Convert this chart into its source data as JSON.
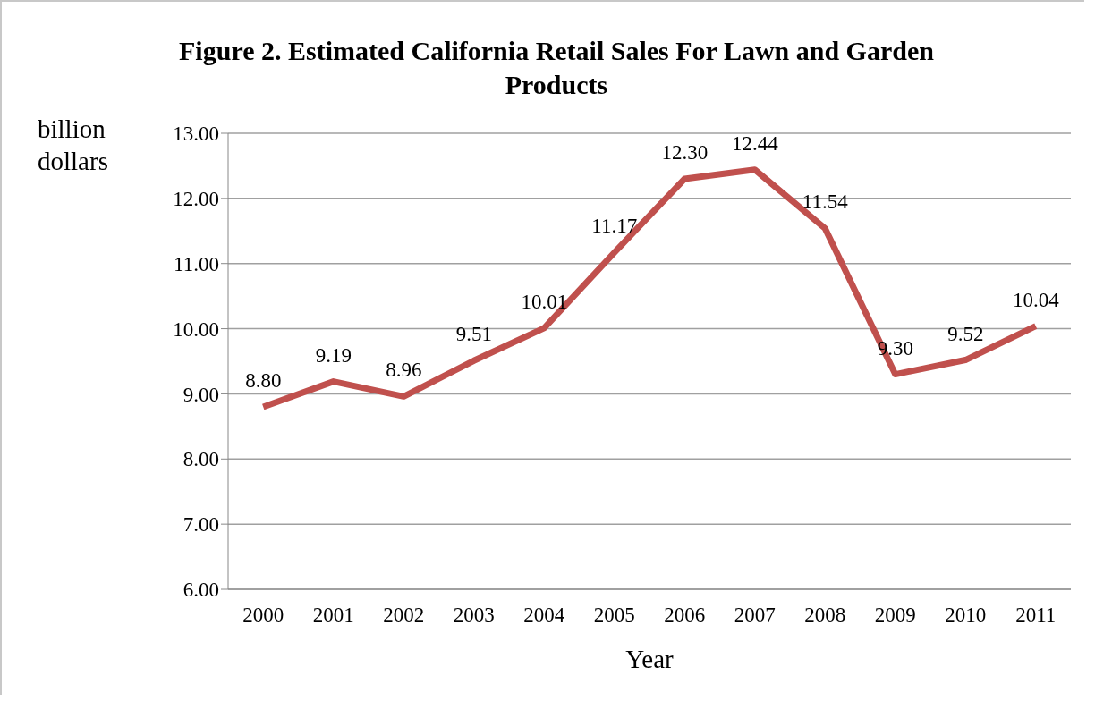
{
  "chart_data": {
    "type": "line",
    "title": "Figure 2. Estimated California Retail Sales For Lawn and Garden Products",
    "xlabel": "Year",
    "ylabel": "billion dollars",
    "categories": [
      "2000",
      "2001",
      "2002",
      "2003",
      "2004",
      "2005",
      "2006",
      "2007",
      "2008",
      "2009",
      "2010",
      "2011"
    ],
    "series": [
      {
        "color": "#c0504d",
        "values": [
          8.8,
          9.19,
          8.96,
          9.51,
          10.01,
          11.17,
          12.3,
          12.44,
          11.54,
          9.3,
          9.52,
          10.04
        ]
      }
    ],
    "ylim": [
      6,
      13
    ],
    "yticks": [
      {
        "value": 6,
        "label": "6.00"
      },
      {
        "value": 7,
        "label": "7.00"
      },
      {
        "value": 8,
        "label": "8.00"
      },
      {
        "value": 9,
        "label": "9.00"
      },
      {
        "value": 10,
        "label": "10.00"
      },
      {
        "value": 11,
        "label": "11.00"
      },
      {
        "value": 12,
        "label": "12.00"
      },
      {
        "value": 13,
        "label": "13.00"
      }
    ],
    "value_labels": [
      "8.80",
      "9.19",
      "8.96",
      "9.51",
      "10.01",
      "11.17",
      "12.30",
      "12.44",
      "11.54",
      "9.30",
      "9.52",
      "10.04"
    ],
    "grid": "y",
    "legend": false,
    "marker": "none",
    "line_style": "solid"
  }
}
